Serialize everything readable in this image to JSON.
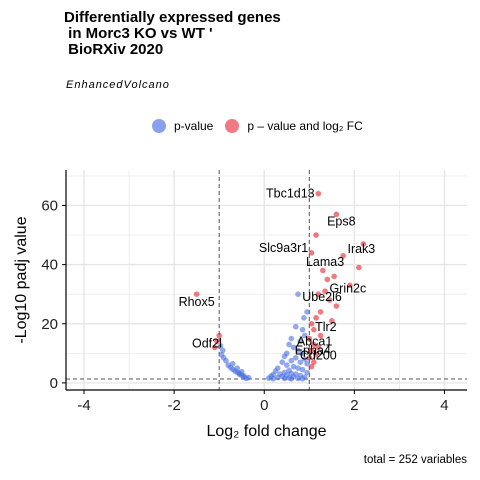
{
  "title": "Differentially expressed genes\n in Morc3 KO vs WT '\n BioRXiv 2020",
  "subtitle": "EnhancedVolcano",
  "caption": "total = 252 variables",
  "legend": [
    {
      "label": "p-value",
      "color": "#4a6fe3"
    },
    {
      "label": "p – value and log₂ FC",
      "color": "#e8202e"
    }
  ],
  "chart_data": {
    "type": "scatter",
    "title": "Differentially expressed genes\n in Morc3 KO vs WT '\n BioRXiv 2020",
    "xlabel": "Log₂ fold change",
    "ylabel": "-Log10 padj value",
    "xlim": [
      -4.4,
      4.5
    ],
    "ylim": [
      -2.4,
      72
    ],
    "xticks": [
      -4,
      -2,
      0,
      2,
      4
    ],
    "yticks": [
      0,
      20,
      40,
      60
    ],
    "thresholds": {
      "x": [
        -1,
        1
      ],
      "y": 1.3
    },
    "grid": true,
    "series": [
      {
        "name": "p-value",
        "color": "#4a6fe3",
        "points": [
          [
            0.75,
            30
          ],
          [
            0.88,
            22
          ],
          [
            0.95,
            24
          ],
          [
            0.7,
            19
          ],
          [
            0.85,
            18
          ],
          [
            0.9,
            16
          ],
          [
            0.6,
            15
          ],
          [
            0.55,
            13
          ],
          [
            0.8,
            14
          ],
          [
            0.65,
            12
          ],
          [
            0.75,
            11
          ],
          [
            0.5,
            10
          ],
          [
            0.85,
            10
          ],
          [
            0.45,
            9
          ],
          [
            0.7,
            8.5
          ],
          [
            0.9,
            8
          ],
          [
            0.6,
            7.5
          ],
          [
            0.4,
            7
          ],
          [
            0.8,
            7
          ],
          [
            0.95,
            6.5
          ],
          [
            0.5,
            6
          ],
          [
            0.65,
            5.5
          ],
          [
            0.3,
            5
          ],
          [
            0.75,
            5
          ],
          [
            0.85,
            4.5
          ],
          [
            0.55,
            4.2
          ],
          [
            0.25,
            4
          ],
          [
            0.45,
            3.5
          ],
          [
            0.95,
            3.5
          ],
          [
            0.6,
            3.2
          ],
          [
            0.35,
            3
          ],
          [
            0.7,
            3
          ],
          [
            0.2,
            2.8
          ],
          [
            0.5,
            2.6
          ],
          [
            0.8,
            2.5
          ],
          [
            0.15,
            2.3
          ],
          [
            0.4,
            2.2
          ],
          [
            0.65,
            2.1
          ],
          [
            0.9,
            2.0
          ],
          [
            0.3,
            1.8
          ],
          [
            0.55,
            1.7
          ],
          [
            0.1,
            1.6
          ],
          [
            0.75,
            1.5
          ],
          [
            0.45,
            1.5
          ],
          [
            0.85,
            1.4
          ],
          [
            0.2,
            1.4
          ],
          [
            0.6,
            1.35
          ],
          [
            -0.45,
            2.0
          ],
          [
            -0.4,
            1.5
          ],
          [
            -0.5,
            2.6
          ],
          [
            -0.55,
            3.2
          ],
          [
            -0.6,
            3.6
          ],
          [
            -0.65,
            4.0
          ],
          [
            -0.7,
            4.6
          ],
          [
            -0.75,
            5.2
          ],
          [
            -0.8,
            6.0
          ],
          [
            -0.85,
            7.5
          ],
          [
            -0.9,
            8.5
          ],
          [
            -0.95,
            9.5
          ],
          [
            -0.92,
            11
          ],
          [
            -0.97,
            12.5
          ],
          [
            -0.7,
            6.5
          ],
          [
            -0.6,
            5.0
          ],
          [
            -0.5,
            3.8
          ],
          [
            -0.55,
            2.9
          ],
          [
            -0.45,
            2.4
          ],
          [
            -0.35,
            1.8
          ]
        ]
      },
      {
        "name": "p – value and log₂ FC",
        "color": "#e8202e",
        "points": [
          [
            1.2,
            64
          ],
          [
            1.6,
            57
          ],
          [
            1.15,
            50
          ],
          [
            2.2,
            47
          ],
          [
            1.75,
            43
          ],
          [
            1.05,
            44
          ],
          [
            2.1,
            39
          ],
          [
            1.3,
            38
          ],
          [
            1.55,
            36
          ],
          [
            1.4,
            35
          ],
          [
            1.9,
            33
          ],
          [
            1.35,
            31
          ],
          [
            1.2,
            30
          ],
          [
            1.45,
            28
          ],
          [
            1.6,
            26
          ],
          [
            1.25,
            24
          ],
          [
            1.15,
            22
          ],
          [
            1.05,
            20
          ],
          [
            1.5,
            21
          ],
          [
            1.1,
            18
          ],
          [
            1.25,
            16
          ],
          [
            1.0,
            15
          ],
          [
            1.1,
            13
          ],
          [
            1.2,
            12
          ],
          [
            1.05,
            11
          ],
          [
            1.15,
            9.5
          ],
          [
            1.0,
            8.5
          ],
          [
            1.1,
            7
          ],
          [
            1.05,
            5.5
          ],
          [
            -1.5,
            30
          ],
          [
            -1.0,
            16
          ],
          [
            -1.05,
            14
          ],
          [
            -1.1,
            12
          ]
        ]
      }
    ],
    "annotations": [
      {
        "label": "Tbc1d13",
        "x": 1.2,
        "y": 64
      },
      {
        "label": "Eps8",
        "x": 1.6,
        "y": 57
      },
      {
        "label": "Irak3",
        "x": 2.2,
        "y": 47
      },
      {
        "label": "Slc9a3r1",
        "x": 1.05,
        "y": 44
      },
      {
        "label": "Lama3",
        "x": 1.75,
        "y": 43
      },
      {
        "label": "Grin2c",
        "x": 1.9,
        "y": 33
      },
      {
        "label": "Rhox5",
        "x": -1.5,
        "y": 30
      },
      {
        "label": "Ube2l6",
        "x": 1.35,
        "y": 31
      },
      {
        "label": "Tlr2",
        "x": 1.5,
        "y": 21
      },
      {
        "label": "Abca1",
        "x": 1.25,
        "y": 16
      },
      {
        "label": "Odf2l",
        "x": -1.05,
        "y": 14
      },
      {
        "label": "Epha4",
        "x": 1.1,
        "y": 13
      },
      {
        "label": "Cd200",
        "x": 1.2,
        "y": 12
      }
    ]
  }
}
